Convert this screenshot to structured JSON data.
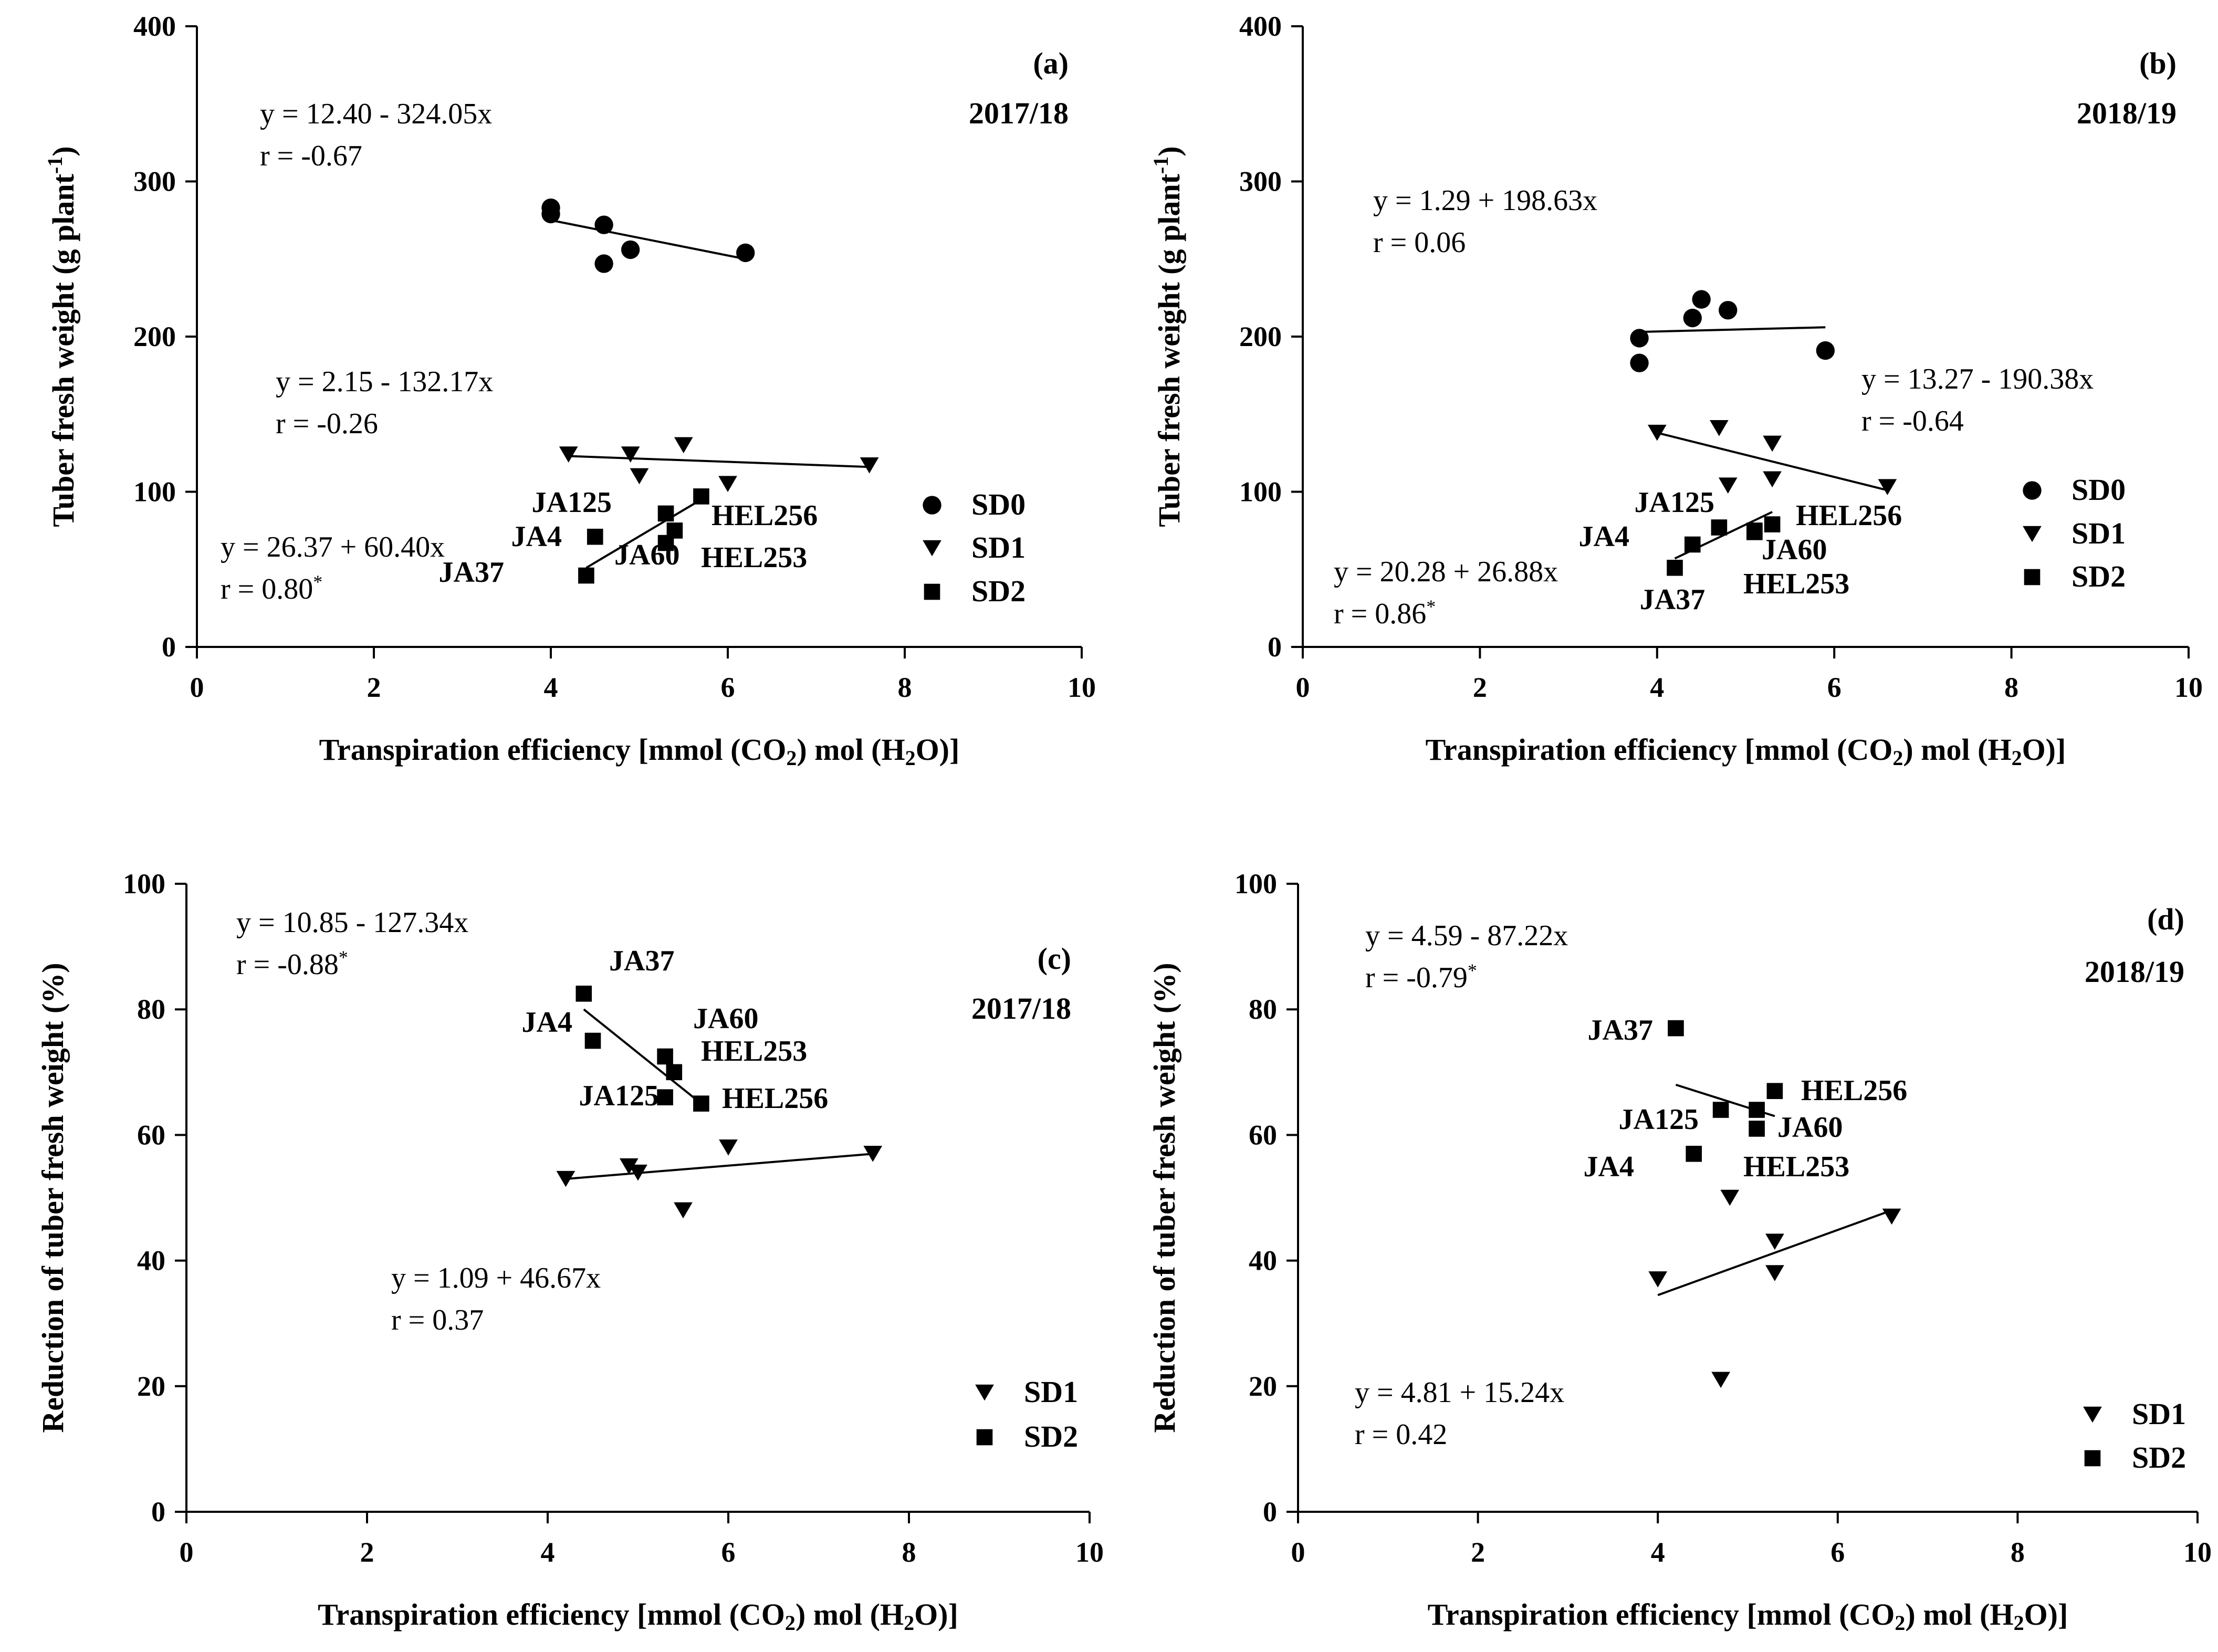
{
  "chart_data": [
    {
      "type": "scatter",
      "panel": "(a)",
      "season": "2017/18",
      "xlabel": "Transpiration efficiency [mmol (CO2) mol (H2O)]",
      "ylabel": "Tuber fresh weight (g plant-1)",
      "xlim": [
        0,
        10
      ],
      "ylim": [
        0,
        400
      ],
      "xticks": [
        0,
        2,
        4,
        6,
        8,
        10
      ],
      "yticks": [
        0,
        100,
        200,
        300,
        400
      ],
      "legend_position": "right",
      "series": [
        {
          "name": "SD0",
          "marker": "circle",
          "x": [
            4.0,
            4.0,
            4.6,
            4.6,
            4.9,
            6.2
          ],
          "y": [
            283,
            279,
            272,
            247,
            256,
            254
          ],
          "fit": {
            "x": [
              4.0,
              6.2
            ],
            "y": [
              275,
              250
            ]
          },
          "equation": "y = 12.40 - 324.05x",
          "r": "r = -0.67"
        },
        {
          "name": "SD1",
          "marker": "triangle-down",
          "x": [
            4.2,
            4.9,
            5.0,
            5.5,
            6.0,
            7.6
          ],
          "y": [
            124,
            124,
            110,
            130,
            105,
            117
          ],
          "fit": {
            "x": [
              4.2,
              7.6
            ],
            "y": [
              123,
              116
            ]
          },
          "equation": "y = 2.15 - 132.17x",
          "r": "r = -0.26"
        },
        {
          "name": "SD2",
          "marker": "square",
          "x": [
            4.4,
            4.5,
            5.3,
            5.3,
            5.4,
            5.7
          ],
          "y": [
            46,
            71,
            86,
            67,
            75,
            97
          ],
          "fit": {
            "x": [
              4.4,
              5.7
            ],
            "y": [
              51,
              95
            ]
          },
          "equation": "y = 26.37 + 60.40x",
          "r": "r = 0.80",
          "r_sup": "*",
          "point_labels": [
            "JA37",
            "JA4",
            "JA125",
            "JA60",
            "HEL253",
            "HEL256"
          ]
        }
      ]
    },
    {
      "type": "scatter",
      "panel": "(b)",
      "season": "2018/19",
      "xlabel": "Transpiration efficiency [mmol (CO2) mol (H2O)]",
      "ylabel": "Tuber fresh weight (g plant-1)",
      "xlim": [
        0,
        10
      ],
      "ylim": [
        0,
        400
      ],
      "xticks": [
        0,
        2,
        4,
        6,
        8,
        10
      ],
      "yticks": [
        0,
        100,
        200,
        300,
        400
      ],
      "legend_position": "right",
      "series": [
        {
          "name": "SD0",
          "marker": "circle",
          "x": [
            3.8,
            3.8,
            4.4,
            4.5,
            4.8,
            5.9
          ],
          "y": [
            199,
            183,
            212,
            224,
            217,
            191
          ],
          "fit": {
            "x": [
              3.8,
              5.9
            ],
            "y": [
              203,
              206
            ]
          },
          "equation": "y = 1.29 + 198.63x",
          "r": "r = 0.06"
        },
        {
          "name": "SD1",
          "marker": "triangle-down",
          "x": [
            4.0,
            4.7,
            4.8,
            5.3,
            5.3,
            6.6
          ],
          "y": [
            138,
            141,
            104,
            131,
            108,
            103
          ],
          "fit": {
            "x": [
              4.0,
              6.6
            ],
            "y": [
              138,
              101
            ]
          },
          "equation": "y = 13.27 - 190.38x",
          "r": "r = -0.64"
        },
        {
          "name": "SD2",
          "marker": "square",
          "x": [
            4.2,
            4.4,
            4.7,
            5.1,
            5.1,
            5.3
          ],
          "y": [
            51,
            66,
            77,
            74,
            75,
            79
          ],
          "fit": {
            "x": [
              4.2,
              5.3
            ],
            "y": [
              57,
              87
            ]
          },
          "equation": "y = 20.28 + 26.88x",
          "r": "r = 0.86",
          "r_sup": "*",
          "point_labels": [
            "JA37",
            "JA4",
            "JA125",
            "JA60",
            "HEL253",
            "HEL256"
          ]
        }
      ]
    },
    {
      "type": "scatter",
      "panel": "(c)",
      "season": "2017/18",
      "xlabel": "Transpiration efficiency [mmol (CO2) mol (H2O)]",
      "ylabel": "Reduction of tuber fresh weight (%)",
      "xlim": [
        0,
        10
      ],
      "ylim": [
        0,
        100
      ],
      "xticks": [
        0,
        2,
        4,
        6,
        8,
        10
      ],
      "yticks": [
        0,
        20,
        40,
        60,
        80,
        100
      ],
      "legend_position": "bottom-right",
      "series": [
        {
          "name": "SD1",
          "marker": "triangle-down",
          "x": [
            4.2,
            4.9,
            5.0,
            5.5,
            6.0,
            7.6
          ],
          "y": [
            53,
            55,
            54,
            48,
            58,
            57
          ],
          "fit": {
            "x": [
              4.2,
              7.6
            ],
            "y": [
              53,
              57
            ]
          },
          "equation": "y = 1.09 + 46.67x",
          "r": "r = 0.37"
        },
        {
          "name": "SD2",
          "marker": "square",
          "x": [
            4.4,
            4.5,
            5.3,
            5.3,
            5.4,
            5.7
          ],
          "y": [
            82.5,
            75,
            72.5,
            66,
            70,
            65
          ],
          "fit": {
            "x": [
              4.4,
              5.7
            ],
            "y": [
              80,
              65
            ]
          },
          "equation": "y = 10.85 - 127.34x",
          "r": "r = -0.88",
          "r_sup": "*",
          "point_labels": [
            "JA37",
            "JA4",
            "JA60",
            "JA125",
            "HEL253",
            "HEL256"
          ]
        }
      ]
    },
    {
      "type": "scatter",
      "panel": "(d)",
      "season": "2018/19",
      "xlabel": "Transpiration efficiency [mmol (CO2) mol (H2O)]",
      "ylabel": "Reduction of tuber fresh weight (%)",
      "xlim": [
        0,
        10
      ],
      "ylim": [
        0,
        100
      ],
      "xticks": [
        0,
        2,
        4,
        6,
        8,
        10
      ],
      "yticks": [
        0,
        20,
        40,
        60,
        80,
        100
      ],
      "legend_position": "bottom-right",
      "series": [
        {
          "name": "SD1",
          "marker": "triangle-down",
          "x": [
            4.0,
            4.7,
            4.8,
            5.3,
            5.3,
            6.6
          ],
          "y": [
            37,
            21,
            50,
            43,
            38,
            47
          ],
          "fit": {
            "x": [
              4.0,
              6.6
            ],
            "y": [
              34.5,
              48
            ]
          },
          "equation": "y = 4.81 + 15.24x",
          "r": "r = 0.42"
        },
        {
          "name": "SD2",
          "marker": "square",
          "x": [
            4.2,
            4.4,
            4.7,
            5.1,
            5.1,
            5.3
          ],
          "y": [
            77,
            57,
            64,
            61,
            64,
            67
          ],
          "fit": {
            "x": [
              4.2,
              5.3
            ],
            "y": [
              68,
              63
            ]
          },
          "equation": "y = 4.59 - 87.22x",
          "r": "r = -0.79",
          "r_sup": "*",
          "point_labels": [
            "JA37",
            "JA4",
            "JA125",
            "HEL253",
            "JA60",
            "HEL256"
          ]
        }
      ]
    }
  ]
}
